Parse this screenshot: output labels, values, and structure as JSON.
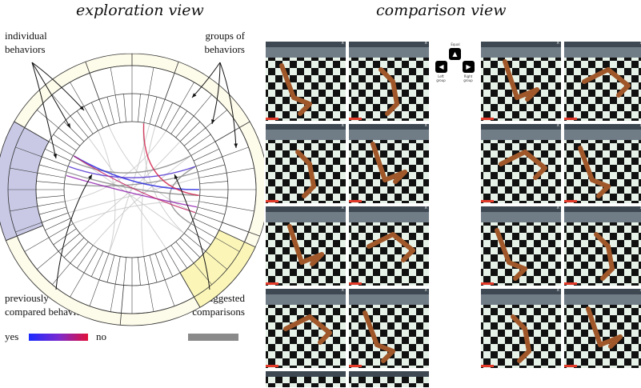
{
  "titles": {
    "exploration": "exploration view",
    "comparison": "comparison view"
  },
  "annotations": {
    "individual_behaviors": [
      "individual",
      "behaviors"
    ],
    "groups_of_behaviors": [
      "groups of",
      "behaviors"
    ],
    "previously_compared": [
      "previously",
      "compared behaviors"
    ],
    "suggested_comparisons": [
      "suggested",
      "comparisons"
    ]
  },
  "legend": {
    "yes": "yes",
    "no": "no"
  },
  "colors": {
    "yes": "#1c2cff",
    "no": "#e2103a",
    "suggested": "#8a8a8a",
    "group_highlight_blue": "#c9c9e6",
    "group_highlight_yellow": "#fbf6b8",
    "group_base": "#fdfbea"
  },
  "keys": {
    "up_label": "Equal",
    "left_label": "Left group",
    "right_label": "Right group"
  },
  "tiles_left_rows": 4,
  "tiles_right_rows": 4,
  "tile_close_glyph": "x"
}
